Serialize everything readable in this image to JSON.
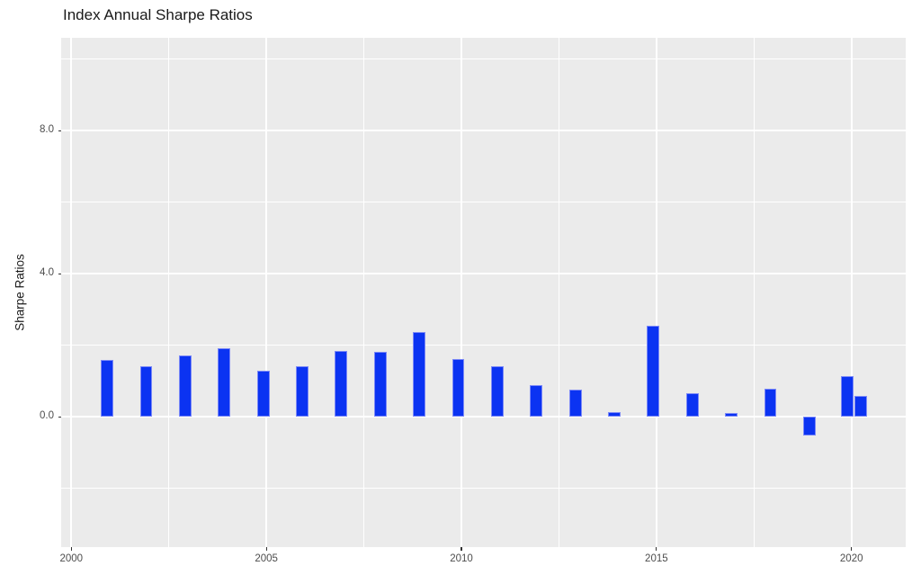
{
  "colors": {
    "bar_fill": "#0b33f2",
    "bar_edge": "#7c89f7",
    "panel_background": "#ebebeb",
    "gridline": "#ffffff",
    "tick_text": "#4d4d4d",
    "title_text": "#1a1a1a",
    "page_background": "#ffffff"
  },
  "chart_data": {
    "type": "bar",
    "title": "Index Annual Sharpe Ratios",
    "xlabel": "",
    "ylabel": "Sharpe Ratios",
    "legend": false,
    "grid": true,
    "xlim": [
      1999.74,
      2021.39
    ],
    "ylim": [
      -3.64,
      10.6
    ],
    "x_major_ticks": [
      {
        "value": 2000,
        "label": "2000"
      },
      {
        "value": 2005,
        "label": "2005"
      },
      {
        "value": 2010,
        "label": "2010"
      },
      {
        "value": 2015,
        "label": "2015"
      },
      {
        "value": 2020,
        "label": "2020"
      }
    ],
    "x_minor_gridlines": [
      2002.5,
      2007.5,
      2012.5,
      2017.5
    ],
    "y_major_ticks": [
      {
        "value": 0,
        "label": "0.0"
      },
      {
        "value": 4,
        "label": "4.0"
      },
      {
        "value": 8,
        "label": "8.0"
      }
    ],
    "y_minor_gridlines": [
      -2,
      2,
      6,
      10
    ],
    "bar_width_years": 0.32,
    "points": [
      {
        "year": "2000",
        "x": 2000.92,
        "value": 1.59
      },
      {
        "year": "2001",
        "x": 2001.92,
        "value": 1.42
      },
      {
        "year": "2002",
        "x": 2002.92,
        "value": 1.72
      },
      {
        "year": "2003",
        "x": 2003.92,
        "value": 1.93
      },
      {
        "year": "2004",
        "x": 2004.92,
        "value": 1.3
      },
      {
        "year": "2005",
        "x": 2005.92,
        "value": 1.42
      },
      {
        "year": "2006",
        "x": 2006.92,
        "value": 1.84
      },
      {
        "year": "2007",
        "x": 2007.92,
        "value": 1.82
      },
      {
        "year": "2008",
        "x": 2008.92,
        "value": 2.37
      },
      {
        "year": "2009",
        "x": 2009.92,
        "value": 1.63
      },
      {
        "year": "2010",
        "x": 2010.92,
        "value": 1.42
      },
      {
        "year": "2011",
        "x": 2011.92,
        "value": 0.88
      },
      {
        "year": "2012",
        "x": 2012.92,
        "value": 0.77
      },
      {
        "year": "2013",
        "x": 2013.92,
        "value": 0.13
      },
      {
        "year": "2014",
        "x": 2014.92,
        "value": 2.56
      },
      {
        "year": "2015",
        "x": 2015.92,
        "value": 0.67
      },
      {
        "year": "2016",
        "x": 2016.92,
        "value": 0.1
      },
      {
        "year": "2017",
        "x": 2017.92,
        "value": 0.79
      },
      {
        "year": "2018",
        "x": 2018.92,
        "value": -0.52
      },
      {
        "year": "2019",
        "x": 2019.89,
        "value": 1.15
      },
      {
        "year": "2020",
        "x": 2020.24,
        "value": 0.59
      }
    ]
  }
}
